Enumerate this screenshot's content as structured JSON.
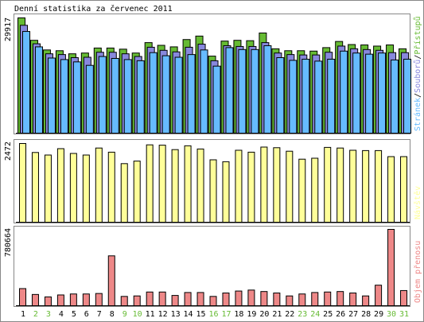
{
  "chart_data": [
    {
      "type": "bar",
      "title": "Denní statistika za červenec 2011",
      "categories": [
        "1",
        "2",
        "3",
        "4",
        "5",
        "6",
        "7",
        "8",
        "9",
        "10",
        "11",
        "12",
        "13",
        "14",
        "15",
        "16",
        "17",
        "18",
        "19",
        "20",
        "21",
        "22",
        "23",
        "24",
        "25",
        "26",
        "27",
        "28",
        "29",
        "30",
        "31"
      ],
      "weekend_days": [
        "2",
        "3",
        "9",
        "10",
        "16",
        "17",
        "23",
        "24",
        "30",
        "31"
      ],
      "ymax_label": "29917",
      "ylim": [
        0,
        29917
      ],
      "legend": {
        "parts": [
          "Stránek",
          "Souborů",
          "Přístupů"
        ],
        "separator": "/"
      },
      "series": [
        {
          "name": "Přístupů",
          "color": "#66bb33",
          "values": [
            29917,
            24100,
            21600,
            21400,
            20600,
            20800,
            22100,
            22100,
            21800,
            20800,
            23500,
            22800,
            22400,
            24300,
            25200,
            20000,
            23900,
            24100,
            24000,
            26000,
            21900,
            21400,
            21400,
            21300,
            22200,
            23800,
            23000,
            22900,
            22600,
            22900,
            21900
          ]
        },
        {
          "name": "Souborů",
          "color": "#8888dd",
          "values": [
            28000,
            23200,
            20600,
            20400,
            19600,
            19700,
            21000,
            21000,
            20600,
            19900,
            22300,
            21500,
            21100,
            22300,
            23100,
            18800,
            22700,
            22500,
            22500,
            23500,
            20800,
            20400,
            20300,
            20300,
            21000,
            22600,
            21900,
            21700,
            21500,
            20900,
            20900
          ]
        },
        {
          "name": "Stránek",
          "color": "#66bbff",
          "values": [
            26400,
            22400,
            19500,
            19100,
            18500,
            17600,
            19900,
            19400,
            19100,
            18800,
            20900,
            20100,
            19700,
            20400,
            21600,
            17400,
            22200,
            21700,
            21700,
            22700,
            19600,
            18900,
            19200,
            18700,
            19200,
            21300,
            20800,
            20500,
            20800,
            19000,
            19200
          ]
        }
      ]
    },
    {
      "type": "bar",
      "ymax_label": "2472",
      "ylim": [
        0,
        2472
      ],
      "legend": {
        "parts": [
          "Návštěv"
        ]
      },
      "series": [
        {
          "name": "Návštěv",
          "color": "#ffff99",
          "values": [
            2472,
            2190,
            2110,
            2310,
            2160,
            2110,
            2330,
            2200,
            1840,
            1920,
            2430,
            2420,
            2280,
            2400,
            2300,
            1960,
            1900,
            2260,
            2200,
            2360,
            2340,
            2230,
            1980,
            2010,
            2350,
            2330,
            2260,
            2250,
            2250,
            2060,
            2060
          ]
        }
      ]
    },
    {
      "type": "bar",
      "ymax_label": "780664",
      "ylim": [
        0,
        780664
      ],
      "legend": {
        "parts": [
          "Objem přenosu"
        ]
      },
      "series": [
        {
          "name": "Objem přenosu",
          "color": "#ee8888",
          "values": [
            175000,
            115000,
            90000,
            110000,
            120000,
            120000,
            125000,
            510000,
            95000,
            100000,
            140000,
            140000,
            105000,
            135000,
            135000,
            95000,
            130000,
            150000,
            160000,
            145000,
            130000,
            100000,
            120000,
            135000,
            140000,
            145000,
            130000,
            100000,
            210000,
            780664,
            155000
          ]
        }
      ]
    }
  ],
  "colors": {
    "frame": "#888888",
    "axis": "#000000",
    "weekday_label": "#000000",
    "weekend_label": "#66bb33"
  }
}
